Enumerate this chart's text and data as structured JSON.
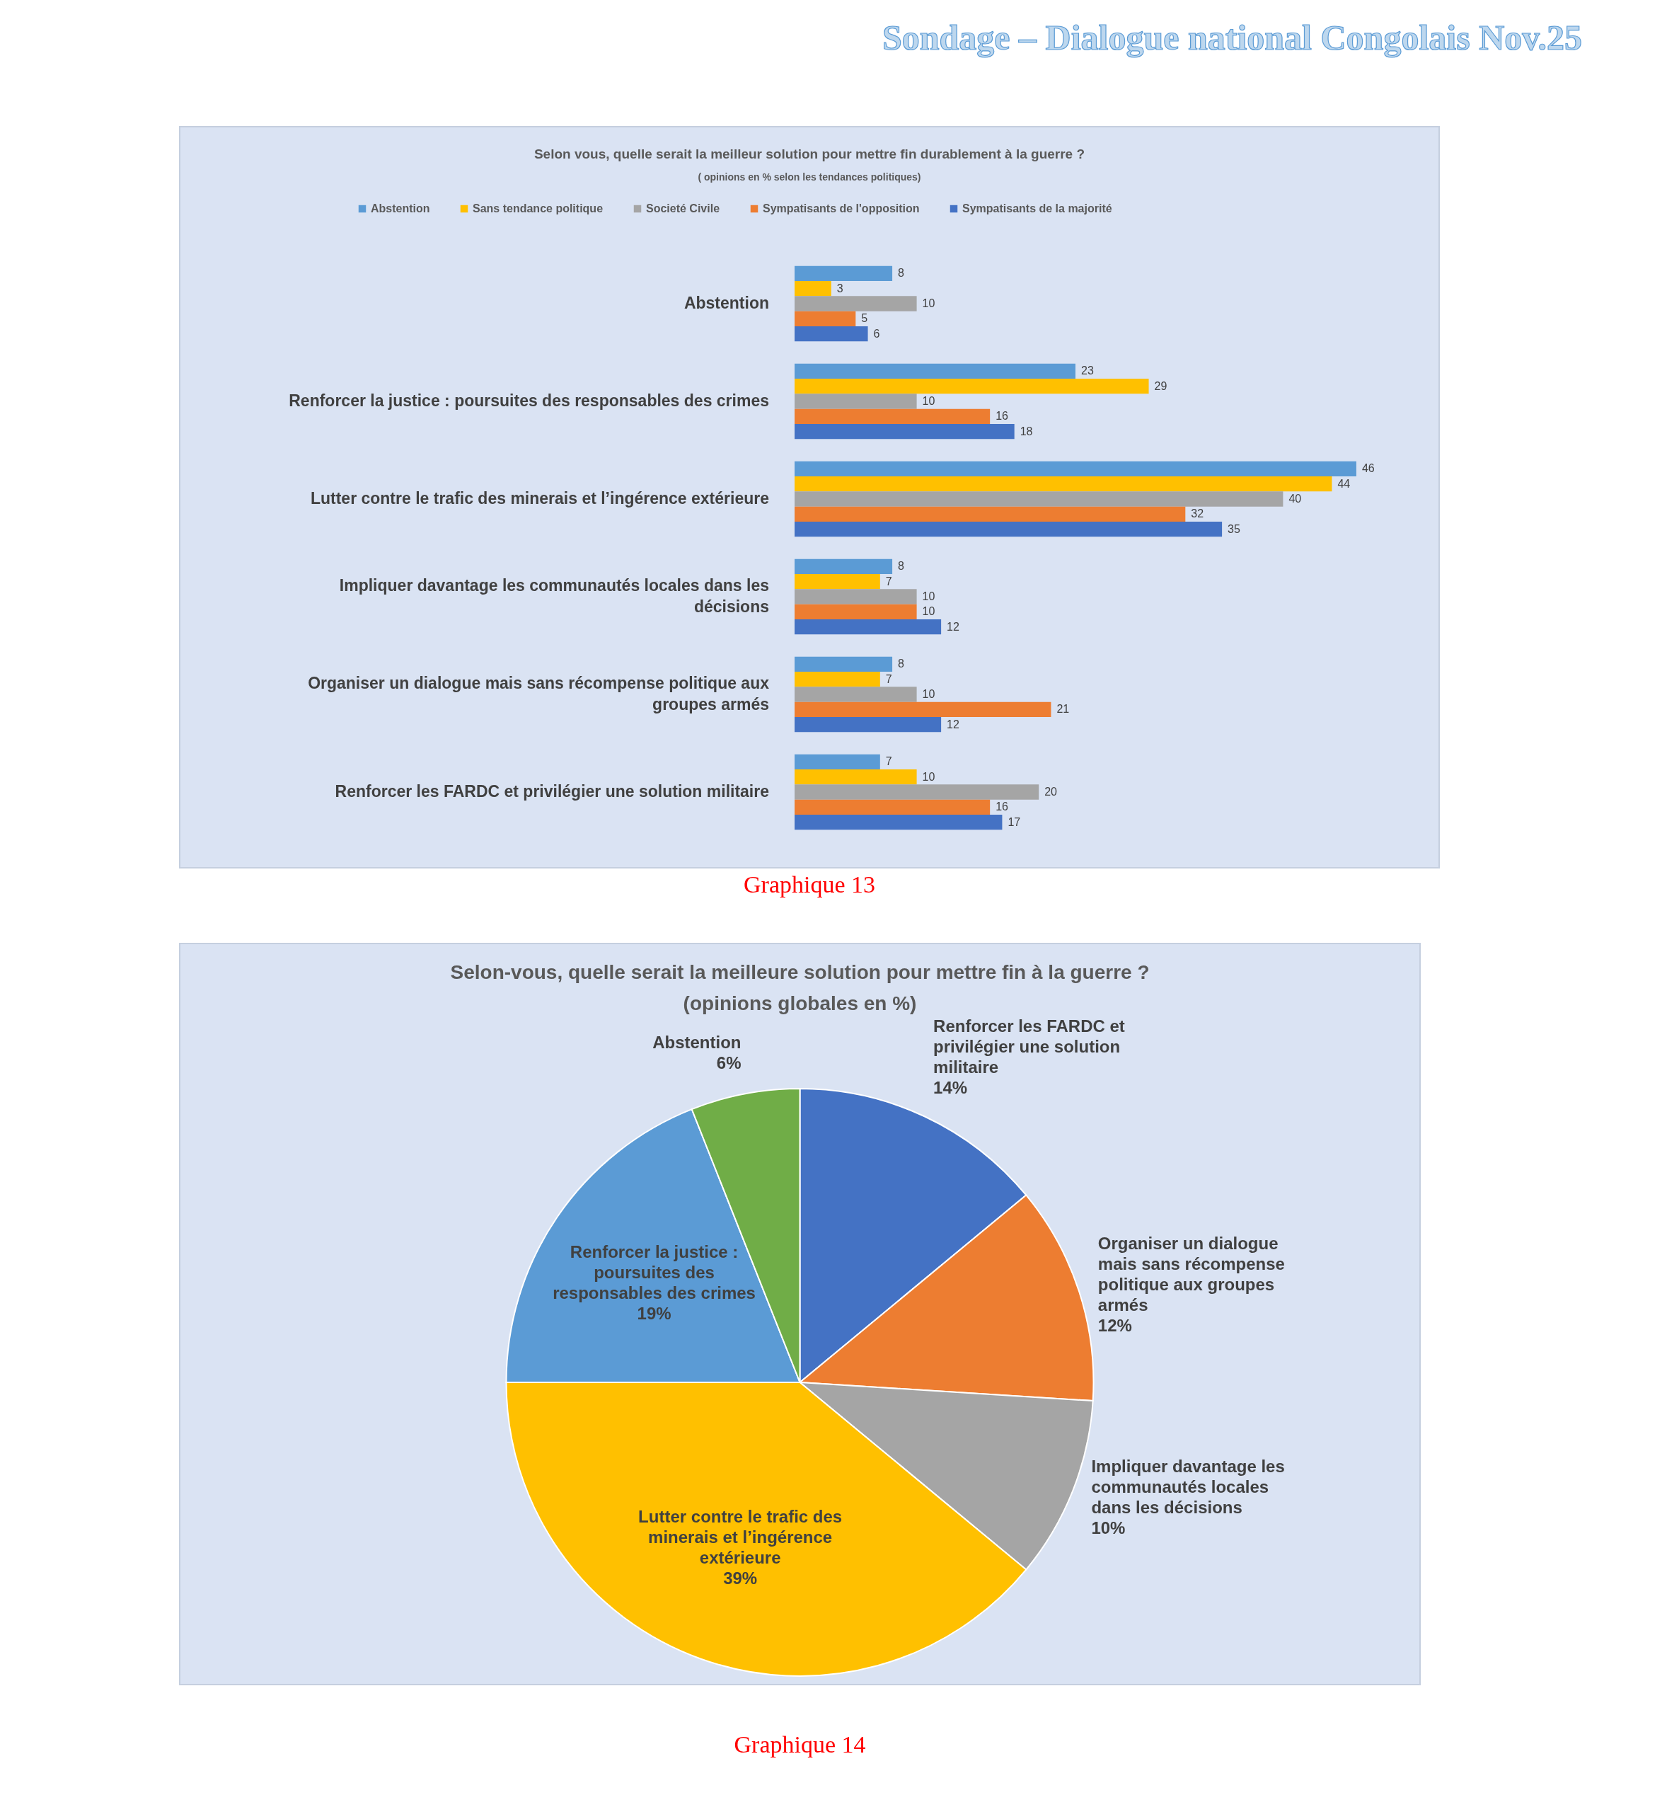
{
  "chart_data": [
    {
      "type": "bar",
      "orientation": "horizontal",
      "title": "Selon vous, quelle serait la meilleur solution pour mettre fin durablement à la guerre ?",
      "subtitle": "( opinions en % selon les tendances politiques)",
      "categories": [
        "Abstention",
        "Renforcer la justice : poursuites des responsables des crimes",
        "Lutter contre le trafic des minerais et l’ingérence extérieure",
        "Impliquer davantage les communautés locales dans les décisions",
        "Organiser un dialogue mais sans récompense politique aux groupes armés",
        "Renforcer les FARDC et privilégier une solution militaire"
      ],
      "series": [
        {
          "name": "Abstention",
          "color": "#5b9bd5",
          "values": [
            8,
            23,
            46,
            8,
            8,
            7
          ]
        },
        {
          "name": "Sans tendance politique",
          "color": "#ffc000",
          "values": [
            3,
            29,
            44,
            7,
            7,
            10
          ]
        },
        {
          "name": "Societé Civile",
          "color": "#a5a5a5",
          "values": [
            10,
            10,
            40,
            10,
            10,
            20
          ]
        },
        {
          "name": "Sympatisants de l'opposition",
          "color": "#ed7d31",
          "values": [
            5,
            16,
            32,
            10,
            21,
            16
          ]
        },
        {
          "name": "Sympatisants de la majorité",
          "color": "#4472c4",
          "values": [
            6,
            18,
            35,
            12,
            12,
            17
          ]
        }
      ],
      "data_labels": true,
      "legend": "top",
      "annotations": [
        "Sondage – Dialogue national Congolais Nov.25",
        "Graphique 13"
      ]
    },
    {
      "type": "pie",
      "title": "Selon-vous, quelle serait la meilleure solution pour mettre fin à la guerre ?",
      "subtitle": "(opinions globales en %)",
      "categories": [
        "Renforcer les FARDC et privilégier une solution militaire",
        "Organiser un dialogue mais sans récompense politique aux groupes armés",
        "Impliquer davantage les communautés locales dans les décisions",
        "Lutter contre le trafic des minerais et l’ingérence extérieure",
        "Renforcer la justice : poursuites des responsables des crimes",
        "Abstention"
      ],
      "values": [
        14,
        12,
        10,
        39,
        19,
        6
      ],
      "colors": [
        "#4472c4",
        "#ed7d31",
        "#a5a5a5",
        "#ffc000",
        "#5b9bd5",
        "#70ad47"
      ],
      "value_labels": [
        "14%",
        "12%",
        "10%",
        "39%",
        "19%",
        "6%"
      ],
      "annotations": [
        "Graphique 14"
      ]
    }
  ]
}
